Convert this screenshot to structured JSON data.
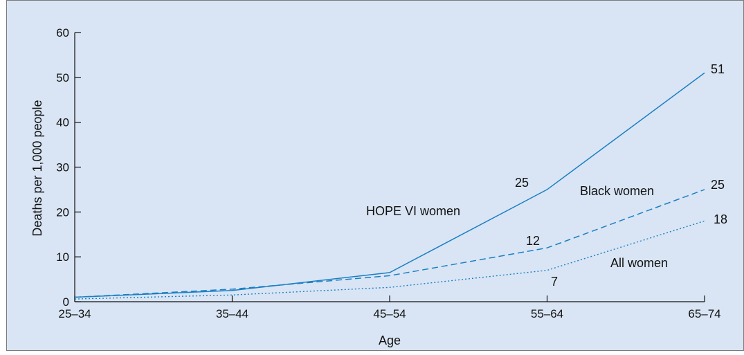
{
  "chart_data": {
    "type": "line",
    "title": "",
    "xlabel": "Age",
    "ylabel": "Deaths per 1,000 people",
    "categories": [
      "25–34",
      "35–44",
      "45–54",
      "55–64",
      "65–74"
    ],
    "ylim": [
      0,
      60
    ],
    "yticks": [
      0,
      10,
      20,
      30,
      40,
      50,
      60
    ],
    "grid": false,
    "legend": "none (direct labels on lines)",
    "series": [
      {
        "name": "HOPE VI women",
        "style": "solid",
        "color": "#1a7fc4",
        "values": [
          1,
          2.5,
          6.5,
          25,
          51
        ]
      },
      {
        "name": "Black women",
        "style": "dashed",
        "color": "#1a7fc4",
        "values": [
          1,
          2.8,
          5.8,
          12,
          25
        ]
      },
      {
        "name": "All women",
        "style": "dotted",
        "color": "#1a7fc4",
        "values": [
          0.6,
          1.5,
          3.2,
          7,
          18
        ]
      }
    ],
    "data_labels": [
      "51",
      "25",
      "25",
      "12",
      "18",
      "7"
    ]
  }
}
